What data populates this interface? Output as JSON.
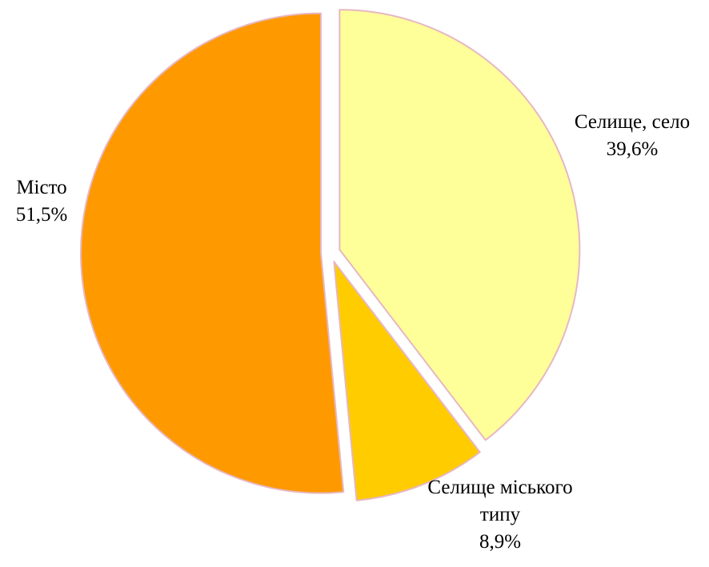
{
  "chart_data": {
    "type": "pie",
    "title": "",
    "exploded": true,
    "slices": [
      {
        "label_lines": [
          "Селище, село"
        ],
        "value_label": "39,6%",
        "value": 39.6,
        "color": "#FFFF99"
      },
      {
        "label_lines": [
          "Селище міського",
          "типу"
        ],
        "value_label": "8,9%",
        "value": 8.9,
        "color": "#FFCC00"
      },
      {
        "label_lines": [
          "Місто"
        ],
        "value_label": "51,5%",
        "value": 51.5,
        "color": "#FF9900"
      }
    ],
    "slice_border_color": "#E6B8C2",
    "legend": "none"
  }
}
